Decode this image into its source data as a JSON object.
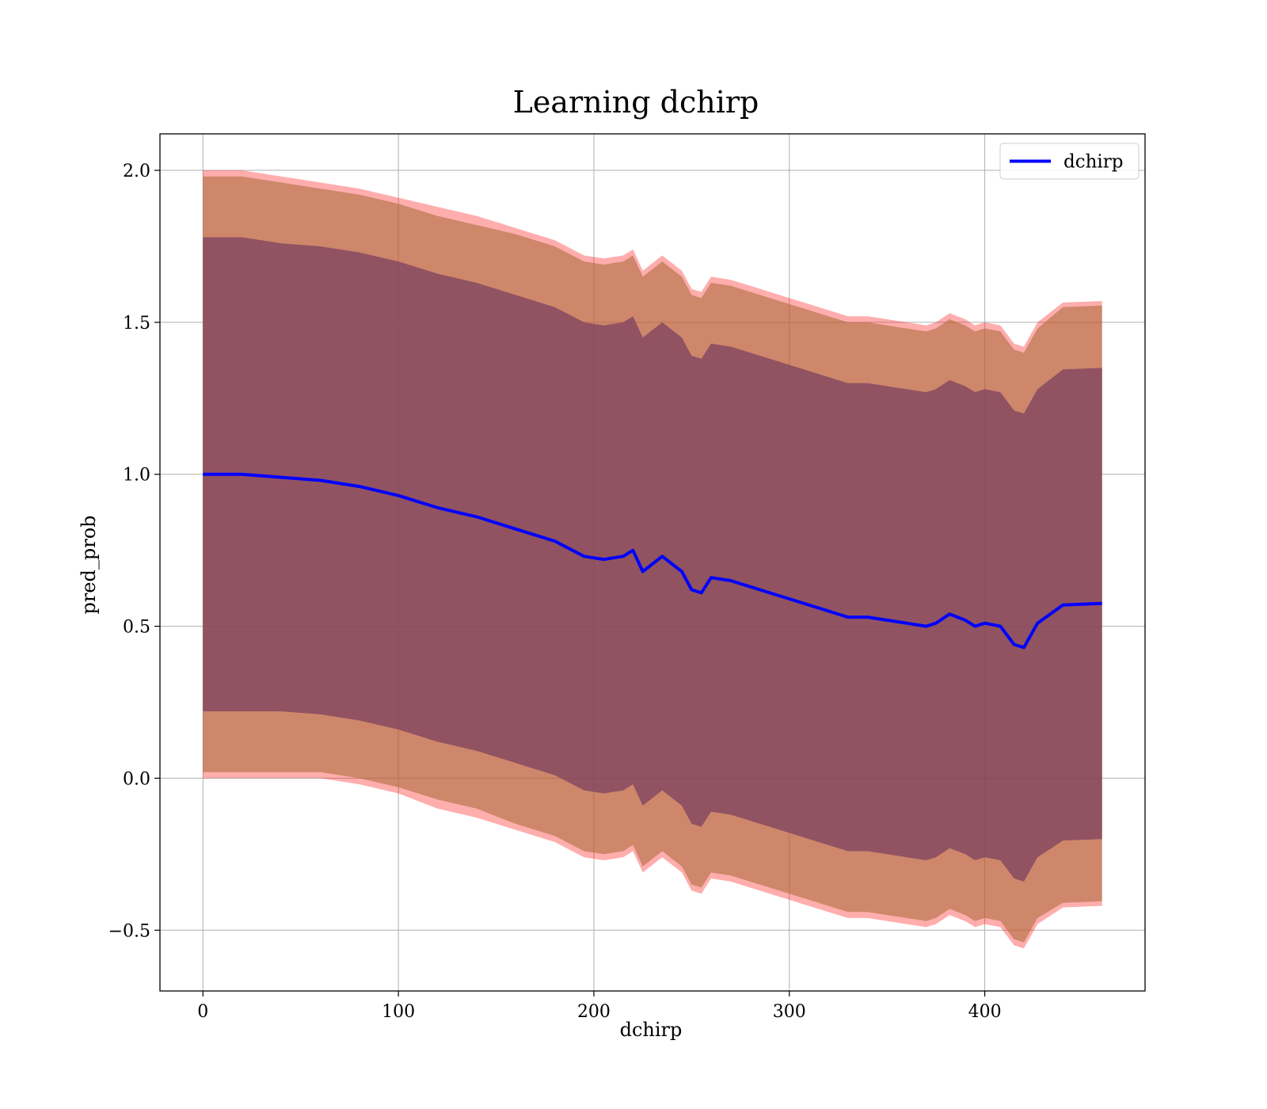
{
  "chart_data": {
    "type": "line",
    "title": "Learning dchirp",
    "xlabel": "dchirp",
    "ylabel": "pred_prob",
    "xlim": [
      -22,
      482
    ],
    "ylim": [
      -0.7,
      2.12
    ],
    "xticks": [
      0,
      100,
      200,
      300,
      400
    ],
    "yticks": [
      -0.5,
      0.0,
      0.5,
      1.0,
      1.5,
      2.0
    ],
    "ytick_labels": [
      "−0.5",
      "0.0",
      "0.5",
      "1.0",
      "1.5",
      "2.0"
    ],
    "grid": true,
    "legend": {
      "position": "top-right",
      "entries": [
        "dchirp"
      ]
    },
    "colors": {
      "mean_line": "#0000ff",
      "band_outer": "#ff0000",
      "band_middle": "#b07040",
      "band_inner": "#7a4060",
      "grid": "#b0b0b0"
    },
    "series": [
      {
        "name": "dchirp",
        "x": [
          0,
          20,
          40,
          60,
          80,
          100,
          120,
          140,
          160,
          180,
          195,
          205,
          215,
          220,
          225,
          235,
          245,
          250,
          255,
          260,
          270,
          280,
          290,
          300,
          310,
          320,
          330,
          340,
          350,
          360,
          370,
          375,
          382,
          390,
          395,
          400,
          408,
          415,
          420,
          427,
          440,
          460
        ],
        "y": [
          1.0,
          1.0,
          0.99,
          0.98,
          0.96,
          0.93,
          0.89,
          0.86,
          0.82,
          0.78,
          0.73,
          0.72,
          0.73,
          0.75,
          0.68,
          0.73,
          0.68,
          0.62,
          0.61,
          0.66,
          0.65,
          0.63,
          0.61,
          0.59,
          0.57,
          0.55,
          0.53,
          0.53,
          0.52,
          0.51,
          0.5,
          0.51,
          0.54,
          0.52,
          0.5,
          0.51,
          0.5,
          0.44,
          0.43,
          0.51,
          0.57,
          0.575
        ]
      }
    ],
    "bands": [
      {
        "level": "outer",
        "half_width": [
          1.0,
          1.0,
          0.99,
          0.98,
          0.98,
          0.98,
          0.99,
          0.99,
          0.99,
          0.99,
          0.99,
          0.99,
          0.99,
          0.99,
          0.99,
          0.99,
          0.99,
          0.99,
          0.99,
          0.99,
          0.99,
          0.99,
          0.99,
          0.99,
          0.99,
          0.99,
          0.99,
          0.99,
          0.99,
          0.99,
          0.99,
          0.99,
          0.99,
          0.99,
          0.99,
          0.99,
          0.99,
          0.99,
          0.99,
          0.99,
          0.995,
          0.995
        ]
      },
      {
        "level": "middle",
        "half_width": [
          0.98,
          0.98,
          0.97,
          0.96,
          0.96,
          0.96,
          0.96,
          0.96,
          0.97,
          0.97,
          0.97,
          0.97,
          0.97,
          0.97,
          0.97,
          0.97,
          0.97,
          0.97,
          0.97,
          0.97,
          0.97,
          0.97,
          0.97,
          0.97,
          0.97,
          0.97,
          0.97,
          0.97,
          0.97,
          0.97,
          0.97,
          0.97,
          0.97,
          0.97,
          0.97,
          0.97,
          0.97,
          0.97,
          0.97,
          0.97,
          0.98,
          0.98
        ]
      },
      {
        "level": "inner",
        "half_width": [
          0.78,
          0.78,
          0.77,
          0.77,
          0.77,
          0.77,
          0.77,
          0.77,
          0.77,
          0.77,
          0.77,
          0.77,
          0.77,
          0.77,
          0.77,
          0.77,
          0.77,
          0.77,
          0.77,
          0.77,
          0.77,
          0.77,
          0.77,
          0.77,
          0.77,
          0.77,
          0.77,
          0.77,
          0.77,
          0.77,
          0.77,
          0.77,
          0.77,
          0.77,
          0.77,
          0.77,
          0.77,
          0.77,
          0.77,
          0.77,
          0.775,
          0.775
        ]
      }
    ]
  }
}
